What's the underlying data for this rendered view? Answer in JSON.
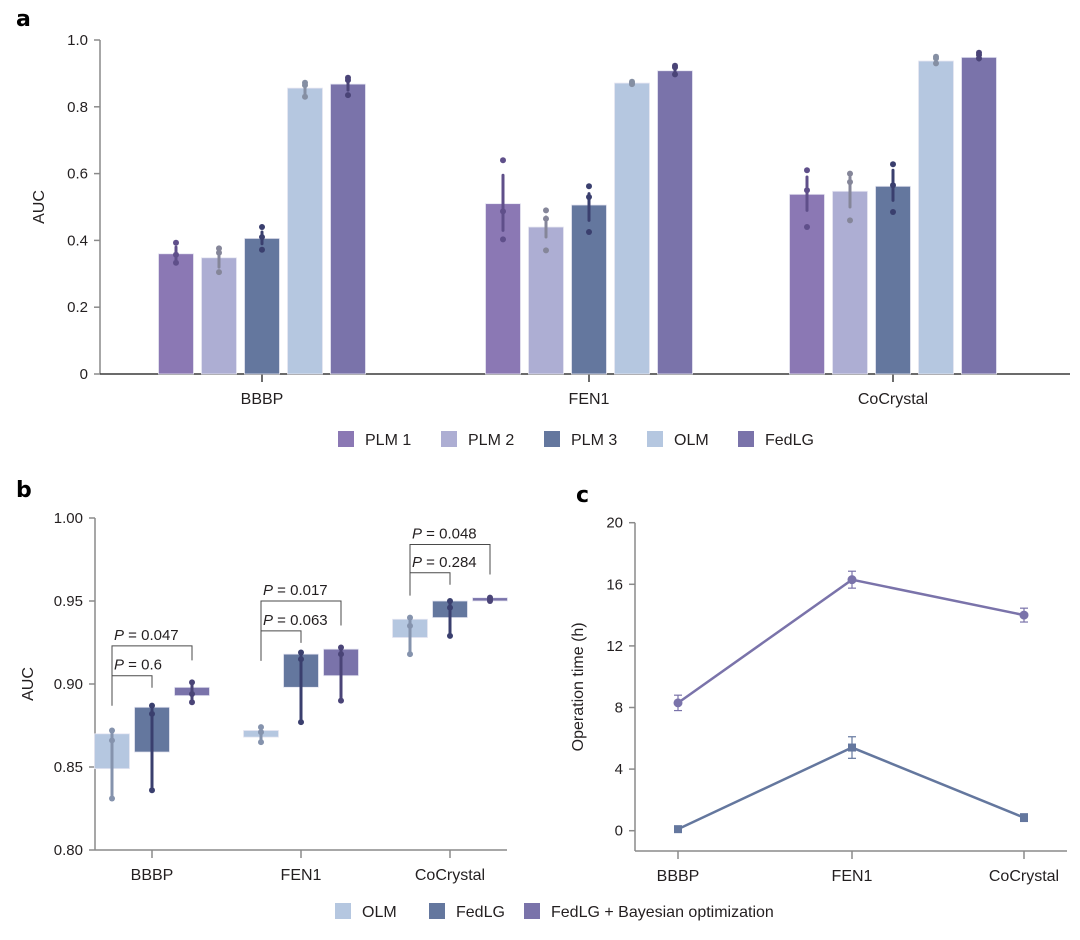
{
  "figure": {
    "panels": [
      "a",
      "b",
      "c"
    ]
  },
  "chart_data": [
    {
      "panel": "a",
      "type": "bar",
      "title": "",
      "xlabel": "",
      "ylabel": "AUC",
      "ylim": [
        0,
        1.0
      ],
      "yticks": [
        0,
        0.2,
        0.4,
        0.6,
        0.8,
        1.0
      ],
      "ytick_labels": [
        "0",
        "0.2",
        "0.4",
        "0.6",
        "0.8",
        "1.0"
      ],
      "categories": [
        "BBBP",
        "FEN1",
        "CoCrystal"
      ],
      "legend_position": "bottom",
      "series": [
        {
          "name": "PLM 1",
          "color": "#8b78b4",
          "dot_color": "#5f4f8a",
          "values": [
            0.36,
            0.51,
            0.538
          ],
          "error": [
            [
              0.335,
              0.38
            ],
            [
              0.43,
              0.595
            ],
            [
              0.49,
              0.59
            ]
          ],
          "points": [
            [
              0.393,
              0.357,
              0.333
            ],
            [
              0.64,
              0.487,
              0.403
            ],
            [
              0.61,
              0.55,
              0.44
            ]
          ]
        },
        {
          "name": "PLM 2",
          "color": "#adaed3",
          "dot_color": "#858699",
          "values": [
            0.348,
            0.44,
            0.547
          ],
          "error": [
            [
              0.32,
              0.375
            ],
            [
              0.41,
              0.47
            ],
            [
              0.5,
              0.59
            ]
          ],
          "points": [
            [
              0.376,
              0.363,
              0.305
            ],
            [
              0.49,
              0.465,
              0.37
            ],
            [
              0.6,
              0.575,
              0.46
            ]
          ]
        },
        {
          "name": "PLM 3",
          "color": "#64779e",
          "dot_color": "#3a3f6e",
          "values": [
            0.406,
            0.506,
            0.562
          ],
          "error": [
            [
              0.39,
              0.425
            ],
            [
              0.46,
              0.54
            ],
            [
              0.52,
              0.61
            ]
          ],
          "points": [
            [
              0.44,
              0.41,
              0.372
            ],
            [
              0.562,
              0.53,
              0.425
            ],
            [
              0.628,
              0.565,
              0.485
            ]
          ]
        },
        {
          "name": "OLM",
          "color": "#b5c7e0",
          "dot_color": "#858fa3",
          "values": [
            0.856,
            0.871,
            0.937
          ],
          "error": [
            [
              0.84,
              0.87
            ],
            [
              0.865,
              0.875
            ],
            [
              0.928,
              0.946
            ]
          ],
          "points": [
            [
              0.872,
              0.865,
              0.83
            ],
            [
              0.875,
              0.871,
              0.868
            ],
            [
              0.95,
              0.945,
              0.93
            ]
          ]
        },
        {
          "name": "FedLG",
          "color": "#7a73aa",
          "dot_color": "#4a4477",
          "values": [
            0.868,
            0.908,
            0.948
          ],
          "error": [
            [
              0.85,
              0.885
            ],
            [
              0.895,
              0.92
            ],
            [
              0.94,
              0.958
            ]
          ],
          "points": [
            [
              0.887,
              0.88,
              0.835
            ],
            [
              0.923,
              0.918,
              0.897
            ],
            [
              0.962,
              0.955,
              0.945
            ]
          ]
        }
      ]
    },
    {
      "panel": "b",
      "type": "bar",
      "title": "",
      "xlabel": "",
      "ylabel": "AUC",
      "ylim": [
        0.8,
        1.0
      ],
      "yticks": [
        0.8,
        0.85,
        0.9,
        0.95,
        1.0
      ],
      "ytick_labels": [
        "0.80",
        "0.85",
        "0.90",
        "0.95",
        "1.00"
      ],
      "categories": [
        "BBBP",
        "FEN1",
        "CoCrystal"
      ],
      "legend_position": "bottom",
      "series": [
        {
          "name": "OLM",
          "color": "#b5c7e0",
          "line_color": "#8593ad",
          "box": [
            [
              0.849,
              0.87
            ],
            [
              0.868,
              0.872
            ],
            [
              0.928,
              0.939
            ]
          ],
          "whisker": [
            [
              0.831,
              0.872
            ],
            [
              0.865,
              0.874
            ],
            [
              0.918,
              0.94
            ]
          ],
          "points": [
            [
              0.872,
              0.866,
              0.831
            ],
            [
              0.874,
              0.871,
              0.865
            ],
            [
              0.94,
              0.935,
              0.918
            ]
          ]
        },
        {
          "name": "FedLG",
          "color": "#64779e",
          "line_color": "#3a3f6e",
          "box": [
            [
              0.859,
              0.886
            ],
            [
              0.898,
              0.918
            ],
            [
              0.94,
              0.95
            ]
          ],
          "whisker": [
            [
              0.836,
              0.887
            ],
            [
              0.877,
              0.919
            ],
            [
              0.929,
              0.95
            ]
          ],
          "points": [
            [
              0.887,
              0.882,
              0.836
            ],
            [
              0.919,
              0.915,
              0.877
            ],
            [
              0.95,
              0.946,
              0.929
            ]
          ]
        },
        {
          "name": "FedLG + Bayesian optimization",
          "color": "#7a73aa",
          "line_color": "#4a4477",
          "box": [
            [
              0.893,
              0.898
            ],
            [
              0.905,
              0.921
            ],
            [
              0.95,
              0.952
            ]
          ],
          "whisker": [
            [
              0.889,
              0.901
            ],
            [
              0.89,
              0.922
            ],
            [
              0.95,
              0.952
            ]
          ],
          "points": [
            [
              0.901,
              0.894,
              0.889
            ],
            [
              0.922,
              0.918,
              0.89
            ],
            [
              0.952,
              0.951,
              0.95
            ]
          ]
        }
      ],
      "annotations": [
        {
          "category": "BBBP",
          "from": "OLM",
          "to": "FedLG",
          "label_prefix": "P",
          "label_value": " = 0.6",
          "level": 0.905
        },
        {
          "category": "BBBP",
          "from": "OLM",
          "to": "FedLG + Bayesian optimization",
          "label_prefix": "P",
          "label_value": " = 0.047",
          "level": 0.923
        },
        {
          "category": "FEN1",
          "from": "OLM",
          "to": "FedLG",
          "label_prefix": "P",
          "label_value": " = 0.063",
          "level": 0.932
        },
        {
          "category": "FEN1",
          "from": "OLM",
          "to": "FedLG + Bayesian optimization",
          "label_prefix": "P",
          "label_value": " = 0.017",
          "level": 0.95
        },
        {
          "category": "CoCrystal",
          "from": "OLM",
          "to": "FedLG",
          "label_prefix": "P",
          "label_value": " = 0.284",
          "level": 0.967
        },
        {
          "category": "CoCrystal",
          "from": "OLM",
          "to": "FedLG + Bayesian optimization",
          "label_prefix": "P",
          "label_value": " = 0.048",
          "level": 0.984
        }
      ]
    },
    {
      "panel": "c",
      "type": "line",
      "title": "",
      "xlabel": "",
      "ylabel": "Operation time (h)",
      "ylim": [
        -1.2,
        20
      ],
      "yticks": [
        0,
        4,
        8,
        12,
        16,
        20
      ],
      "ytick_labels": [
        "0",
        "4",
        "8",
        "12",
        "16",
        "20"
      ],
      "categories": [
        "BBBP",
        "FEN1",
        "CoCrystal"
      ],
      "legend_position": "bottom",
      "series": [
        {
          "name": "FedLG + Bayesian optimization",
          "color": "#7a73aa",
          "marker": "circle",
          "values": [
            8.3,
            16.3,
            14.0
          ],
          "error": [
            0.5,
            0.55,
            0.45
          ]
        },
        {
          "name": "FedLG",
          "color": "#64779e",
          "marker": "square",
          "values": [
            0.1,
            5.4,
            0.85
          ],
          "error": [
            0.2,
            0.7,
            0.25
          ]
        }
      ]
    }
  ],
  "legends": {
    "top": [
      {
        "label": "PLM 1",
        "color": "#8b78b4"
      },
      {
        "label": "PLM 2",
        "color": "#adaed3"
      },
      {
        "label": "PLM 3",
        "color": "#64779e"
      },
      {
        "label": "OLM",
        "color": "#b5c7e0"
      },
      {
        "label": "FedLG",
        "color": "#7a73aa"
      }
    ],
    "bottom": [
      {
        "label": "OLM",
        "color": "#b5c7e0"
      },
      {
        "label": "FedLG",
        "color": "#64779e"
      },
      {
        "label": "FedLG + Bayesian optimization",
        "color": "#7a73aa"
      }
    ]
  }
}
